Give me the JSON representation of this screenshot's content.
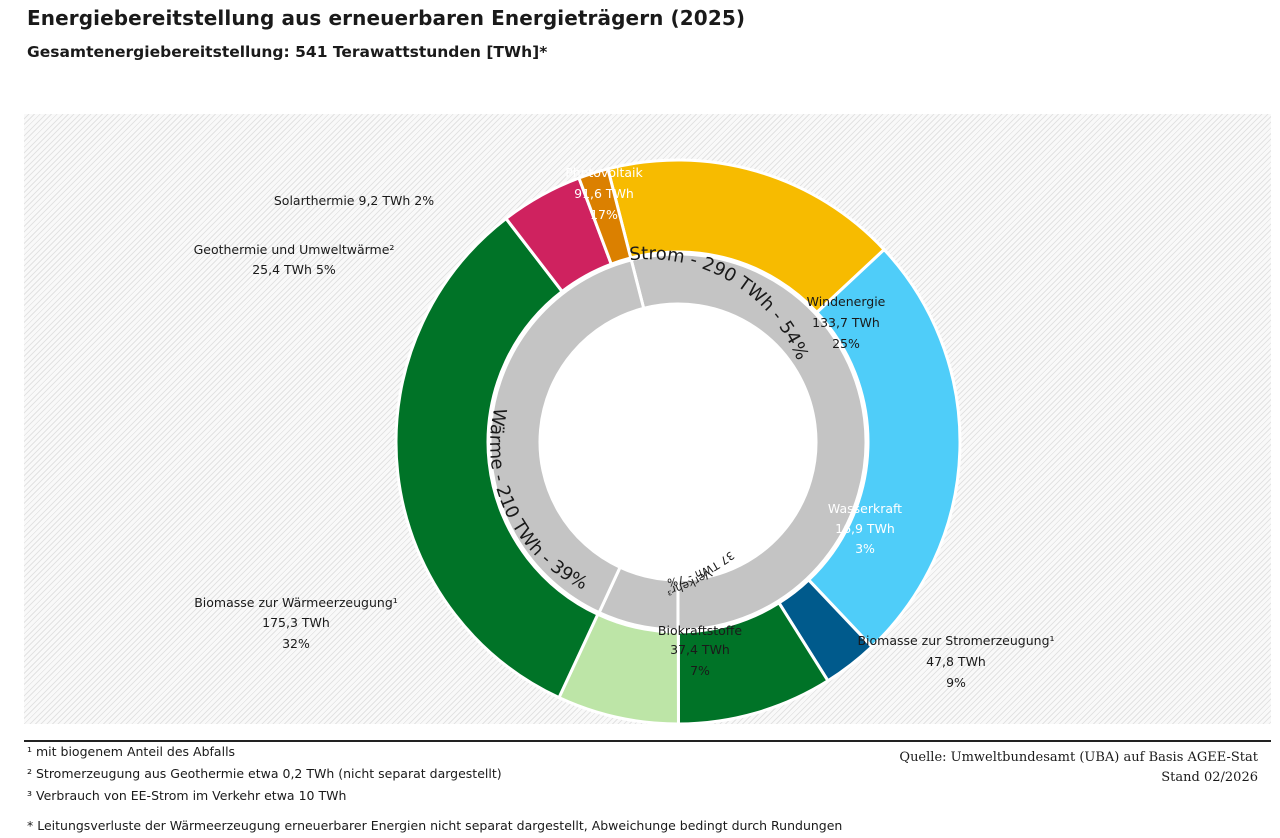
{
  "title": "Energiebereitstellung aus erneuerbaren Energieträgern (2025)",
  "subtitle": "Gesamtenergiebereitstellung: 541 Terawattstunden [TWh]*",
  "chart_data": {
    "type": "pie",
    "unit": "TWh",
    "outer_ring": [
      {
        "name": "Photovoltaik",
        "value": 91.6,
        "value_label": "91,6 TWh",
        "percent_label": "17%",
        "color": "#f7bb00"
      },
      {
        "name": "Windenergie",
        "value": 133.7,
        "value_label": "133,7 TWh",
        "percent_label": "25%",
        "color": "#4fcdf9"
      },
      {
        "name": "Wasserkraft",
        "value": 16.9,
        "value_label": "16,9 TWh",
        "percent_label": "3%",
        "color": "#005a8c"
      },
      {
        "name": "Biomasse zur Stromerzeugung¹",
        "value": 47.8,
        "value_label": "47,8 TWh",
        "percent_label": "9%",
        "color": "#007327"
      },
      {
        "name": "Biokraftstoffe",
        "value": 37.4,
        "value_label": "37,4 TWh",
        "percent_label": "7%",
        "color": "#bde5a7"
      },
      {
        "name": "Biomasse zur Wärmeerzeugung¹",
        "value": 175.3,
        "value_label": "175,3 TWh",
        "percent_label": "32%",
        "color": "#007327"
      },
      {
        "name": "Geothermie und Umweltwärme²",
        "value": 25.4,
        "value_label": "25,4 TWh",
        "percent_label": "5%",
        "color": "#cf225f"
      },
      {
        "name": "Solarthermie",
        "value": 9.2,
        "value_label": "9,2 TWh",
        "percent_label": "2%",
        "color": "#db8000"
      }
    ],
    "inner_ring": [
      {
        "label": "Strom - 290 TWh - 54%",
        "value": 290
      },
      {
        "label": "Verkehr³",
        "sublabel": "37 TWh - 7%",
        "value": 37
      },
      {
        "label": "Wärme - 210 TWh - 39%",
        "value": 210
      }
    ],
    "inner_ring_color": "#c4c4c4"
  },
  "footnotes": [
    "¹ mit biogenem Anteil des Abfalls",
    "² Stromerzeugung aus Geothermie etwa 0,2 TWh (nicht separat dargestellt)",
    "³ Verbrauch von EE-Strom im Verkehr etwa  10 TWh",
    "* Leitungsverluste der Wärmeerzeugung erneuerbarer Energien nicht separat dargestellt, Abweichunge bedingt durch Rundungen"
  ],
  "source": {
    "line1": "Quelle: Umweltbundesamt (UBA) auf Basis AGEE-Stat",
    "line2": "Stand 02/2026"
  }
}
